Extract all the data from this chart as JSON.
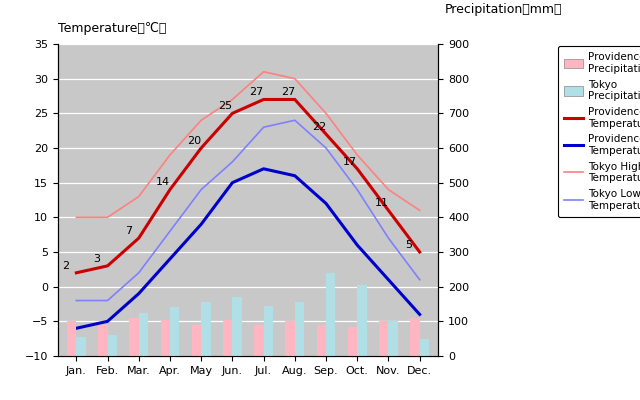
{
  "months": [
    "Jan.",
    "Feb.",
    "Mar.",
    "Apr.",
    "May",
    "Jun.",
    "Jul.",
    "Aug.",
    "Sep.",
    "Oct.",
    "Nov.",
    "Dec."
  ],
  "month_x": [
    0,
    1,
    2,
    3,
    4,
    5,
    6,
    7,
    8,
    9,
    10,
    11
  ],
  "providence_high": [
    2,
    3,
    7,
    14,
    20,
    25,
    27,
    27,
    22,
    17,
    11,
    5
  ],
  "providence_low": [
    -6,
    -5,
    -1,
    4,
    9,
    15,
    17,
    16,
    12,
    6,
    1,
    -4
  ],
  "tokyo_high": [
    10,
    10,
    13,
    19,
    24,
    27,
    31,
    30,
    25,
    19,
    14,
    11
  ],
  "tokyo_low": [
    -2,
    -2,
    2,
    8,
    14,
    18,
    23,
    24,
    20,
    14,
    7,
    1
  ],
  "providence_precip": [
    100,
    90,
    110,
    105,
    90,
    105,
    90,
    100,
    90,
    85,
    100,
    110
  ],
  "tokyo_precip": [
    55,
    60,
    125,
    140,
    155,
    170,
    145,
    155,
    240,
    205,
    100,
    50
  ],
  "providence_high_color": "#cc0000",
  "providence_low_color": "#0000cc",
  "tokyo_high_color": "#ff8080",
  "tokyo_low_color": "#8080ff",
  "providence_precip_color": "#ffb6c1",
  "tokyo_precip_color": "#b0e0e6",
  "annot_providence_high": [
    [
      0,
      "2"
    ],
    [
      1,
      "3"
    ],
    [
      2,
      "7"
    ],
    [
      3,
      "14"
    ],
    [
      4,
      "20"
    ],
    [
      5,
      "25"
    ],
    [
      6,
      "27"
    ],
    [
      7,
      "27"
    ],
    [
      8,
      "22"
    ],
    [
      9,
      "17"
    ],
    [
      10,
      "11"
    ],
    [
      11,
      "5"
    ]
  ],
  "temp_ylim": [
    -10,
    35
  ],
  "precip_ylim": [
    0,
    900
  ],
  "temp_yticks": [
    -10,
    -5,
    0,
    5,
    10,
    15,
    20,
    25,
    30,
    35
  ],
  "precip_yticks": [
    0,
    100,
    200,
    300,
    400,
    500,
    600,
    700,
    800,
    900
  ],
  "title_left": "Temperature（℃）",
  "title_right": "Precipitation（mm）",
  "background_color": "#c8c8c8",
  "fig_background": "#ffffff",
  "legend_labels": [
    "Providence\nPrecipitation",
    "Tokyo\nPrecipitation",
    "Providence High\nTemperature",
    "Providence Low\nTemperature",
    "Tokyo High\nTemperature",
    "Tokyo Low\nTemperature"
  ]
}
